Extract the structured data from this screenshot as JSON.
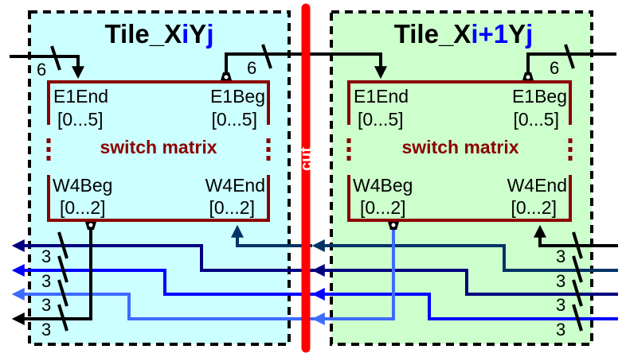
{
  "tiles": [
    {
      "title_prefix": "Tile_X",
      "title_i": "i",
      "title_mid": "Y",
      "title_j": "j",
      "fill": "#ccffff",
      "switch_matrix": "switch matrix",
      "e1end": "E1End",
      "e1end_range": "[0...5]",
      "e1beg": "E1Beg",
      "e1beg_range": "[0...5]",
      "w4beg": "W4Beg",
      "w4beg_range": "[0...2]",
      "w4end": "W4End",
      "w4end_range": "[0...2]"
    },
    {
      "title_prefix": "Tile_X",
      "title_i": "i+1",
      "title_mid": "Y",
      "title_j": "j",
      "fill": "#ccffcc",
      "switch_matrix": "switch matrix",
      "e1end": "E1End",
      "e1end_range": "[0...5]",
      "e1beg": "E1Beg",
      "e1beg_range": "[0...5]",
      "w4beg": "W4Beg",
      "w4beg_range": "[0...2]",
      "w4end": "W4End",
      "w4end_range": "[0...2]"
    }
  ],
  "cut_label": "cut",
  "bus_widths": {
    "e1": "6",
    "w4": "3"
  },
  "colors": {
    "cut": "#ff0000",
    "matrix": "#8b0000",
    "w4_wire_1": "#000080",
    "w4_wire_2": "#0000ff",
    "w4_wire_3": "#3d6bff",
    "w4_wire_4": "#003366",
    "index_highlight": "#0000ff"
  }
}
